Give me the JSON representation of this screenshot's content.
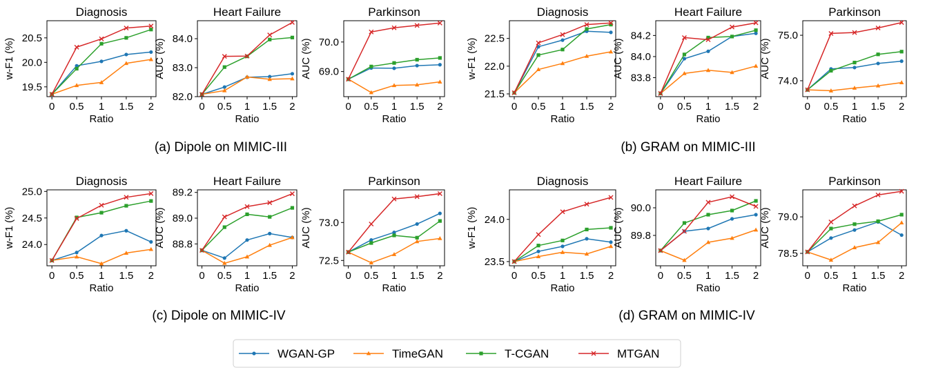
{
  "series_names": [
    "WGAN-GP",
    "TimeGAN",
    "T-CGAN",
    "MTGAN"
  ],
  "series_colors": [
    "#1f77b4",
    "#ff7f0e",
    "#2ca02c",
    "#d62728"
  ],
  "series_markers": [
    "circle",
    "triangle",
    "square",
    "x"
  ],
  "captions": [
    "(a) Dipole on MIMIC-III",
    "(b) GRAM on MIMIC-III",
    "(c) Dipole on MIMIC-IV",
    "(d) GRAM on MIMIC-IV"
  ],
  "chart_data": [
    {
      "type": "line",
      "title": "Diagnosis",
      "xlabel": "Ratio",
      "ylabel": "w-F1 (%)",
      "x": [
        0,
        0.5,
        1,
        1.5,
        2
      ],
      "xticks": [
        "0",
        "0.5",
        "1",
        "1.5",
        "2"
      ],
      "ylim": [
        19.3,
        20.85
      ],
      "yticks": [
        19.5,
        20.0,
        20.5
      ],
      "yticklabels": [
        "19.5",
        "20.0",
        "20.5"
      ],
      "series": [
        {
          "name": "WGAN-GP",
          "values": [
            19.35,
            19.93,
            20.02,
            20.16,
            20.21
          ]
        },
        {
          "name": "TimeGAN",
          "values": [
            19.35,
            19.53,
            19.59,
            19.98,
            20.06
          ]
        },
        {
          "name": "T-CGAN",
          "values": [
            19.35,
            19.87,
            20.38,
            20.5,
            20.67
          ]
        },
        {
          "name": "MTGAN",
          "values": [
            19.35,
            20.31,
            20.48,
            20.7,
            20.74
          ]
        }
      ]
    },
    {
      "type": "line",
      "title": "Heart Failure",
      "xlabel": "Ratio",
      "ylabel": "AUC (%)",
      "x": [
        0,
        0.5,
        1,
        1.5,
        2
      ],
      "xticks": [
        "0",
        "0.5",
        "1",
        "1.5",
        "2"
      ],
      "ylim": [
        82.0,
        84.62
      ],
      "yticks": [
        82.0,
        83.0,
        84.0
      ],
      "yticklabels": [
        "82.0",
        "83.0",
        "84.0"
      ],
      "series": [
        {
          "name": "WGAN-GP",
          "values": [
            82.08,
            82.33,
            82.67,
            82.69,
            82.79
          ]
        },
        {
          "name": "TimeGAN",
          "values": [
            82.08,
            82.21,
            82.68,
            82.6,
            82.62
          ]
        },
        {
          "name": "T-CGAN",
          "values": [
            82.08,
            83.02,
            83.39,
            83.97,
            84.04
          ]
        },
        {
          "name": "MTGAN",
          "values": [
            82.08,
            83.39,
            83.4,
            84.13,
            84.56
          ]
        }
      ]
    },
    {
      "type": "line",
      "title": "Parkinson",
      "xlabel": "Ratio",
      "ylabel": "AUC (%)",
      "x": [
        0,
        0.5,
        1,
        1.5,
        2
      ],
      "xticks": [
        "0",
        "0.5",
        "1",
        "1.5",
        "2"
      ],
      "ylim": [
        68.15,
        70.72
      ],
      "yticks": [
        69.0,
        70.0
      ],
      "yticklabels": [
        "69.0",
        "70.0"
      ],
      "series": [
        {
          "name": "WGAN-GP",
          "values": [
            68.74,
            69.12,
            69.11,
            69.2,
            69.23
          ]
        },
        {
          "name": "TimeGAN",
          "values": [
            68.74,
            68.29,
            68.53,
            68.55,
            68.65
          ]
        },
        {
          "name": "T-CGAN",
          "values": [
            68.74,
            69.17,
            69.29,
            69.4,
            69.46
          ]
        },
        {
          "name": "MTGAN",
          "values": [
            68.74,
            70.34,
            70.48,
            70.56,
            70.64
          ]
        }
      ]
    },
    {
      "type": "line",
      "title": "Diagnosis",
      "xlabel": "Ratio",
      "ylabel": "w-F1 (%)",
      "x": [
        0,
        0.5,
        1,
        1.5,
        2
      ],
      "xticks": [
        "0",
        "0.5",
        "1",
        "1.5",
        "2"
      ],
      "ylim": [
        21.45,
        22.82
      ],
      "yticks": [
        21.5,
        22.0,
        22.5
      ],
      "yticklabels": [
        "21.5",
        "22.0",
        "22.5"
      ],
      "series": [
        {
          "name": "WGAN-GP",
          "values": [
            21.52,
            22.35,
            22.47,
            22.63,
            22.61
          ]
        },
        {
          "name": "TimeGAN",
          "values": [
            21.52,
            21.94,
            22.05,
            22.18,
            22.26
          ]
        },
        {
          "name": "T-CGAN",
          "values": [
            21.52,
            22.2,
            22.3,
            22.67,
            22.75
          ]
        },
        {
          "name": "MTGAN",
          "values": [
            21.52,
            22.42,
            22.57,
            22.75,
            22.78
          ]
        }
      ]
    },
    {
      "type": "line",
      "title": "Heart Failure",
      "xlabel": "Ratio",
      "ylabel": "AUC (%)",
      "x": [
        0,
        0.5,
        1,
        1.5,
        2
      ],
      "xticks": [
        "0",
        "0.5",
        "1",
        "1.5",
        "2"
      ],
      "ylim": [
        83.62,
        84.34
      ],
      "yticks": [
        83.8,
        84.0,
        84.2
      ],
      "yticklabels": [
        "83.8",
        "84.0",
        "84.2"
      ],
      "series": [
        {
          "name": "WGAN-GP",
          "values": [
            83.65,
            83.98,
            84.05,
            84.19,
            84.22
          ]
        },
        {
          "name": "TimeGAN",
          "values": [
            83.65,
            83.84,
            83.87,
            83.85,
            83.91
          ]
        },
        {
          "name": "T-CGAN",
          "values": [
            83.65,
            84.02,
            84.18,
            84.19,
            84.25
          ]
        },
        {
          "name": "MTGAN",
          "values": [
            83.65,
            84.18,
            84.16,
            84.28,
            84.32
          ]
        }
      ]
    },
    {
      "type": "line",
      "title": "Parkinson",
      "xlabel": "Ratio",
      "ylabel": "AUC (%)",
      "x": [
        0,
        0.5,
        1,
        1.5,
        2
      ],
      "xticks": [
        "0",
        "0.5",
        "1",
        "1.5",
        "2"
      ],
      "ylim": [
        73.65,
        75.32
      ],
      "yticks": [
        74.0,
        75.0
      ],
      "yticklabels": [
        "74.0",
        "75.0"
      ],
      "series": [
        {
          "name": "WGAN-GP",
          "values": [
            73.8,
            74.26,
            74.29,
            74.38,
            74.43
          ]
        },
        {
          "name": "TimeGAN",
          "values": [
            73.8,
            73.78,
            73.84,
            73.89,
            73.96
          ]
        },
        {
          "name": "T-CGAN",
          "values": [
            73.8,
            74.22,
            74.4,
            74.58,
            74.64
          ]
        },
        {
          "name": "MTGAN",
          "values": [
            73.8,
            75.04,
            75.06,
            75.16,
            75.28
          ]
        }
      ]
    },
    {
      "type": "line",
      "title": "Diagnosis",
      "xlabel": "Ratio",
      "ylabel": "w-F1 (%)",
      "x": [
        0,
        0.5,
        1,
        1.5,
        2
      ],
      "xticks": [
        "0",
        "0.5",
        "1",
        "1.5",
        "2"
      ],
      "ylim": [
        23.6,
        25.03
      ],
      "yticks": [
        24.0,
        24.5,
        25.0
      ],
      "yticklabels": [
        "24.0",
        "24.5",
        "25.0"
      ],
      "series": [
        {
          "name": "WGAN-GP",
          "values": [
            23.7,
            23.85,
            24.17,
            24.26,
            24.05
          ]
        },
        {
          "name": "TimeGAN",
          "values": [
            23.7,
            23.77,
            23.64,
            23.84,
            23.91
          ]
        },
        {
          "name": "T-CGAN",
          "values": [
            23.7,
            24.51,
            24.6,
            24.73,
            24.82
          ]
        },
        {
          "name": "MTGAN",
          "values": [
            23.7,
            24.49,
            24.74,
            24.89,
            24.96
          ]
        }
      ]
    },
    {
      "type": "line",
      "title": "Heart Failure",
      "xlabel": "Ratio",
      "ylabel": "AUC (%)",
      "x": [
        0,
        0.5,
        1,
        1.5,
        2
      ],
      "xticks": [
        "0",
        "0.5",
        "1",
        "1.5",
        "2"
      ],
      "ylim": [
        88.63,
        89.22
      ],
      "yticks": [
        88.8,
        89.0,
        89.2
      ],
      "yticklabels": [
        "88.8",
        "89.0",
        "89.2"
      ],
      "series": [
        {
          "name": "WGAN-GP",
          "values": [
            88.75,
            88.69,
            88.83,
            88.88,
            88.85
          ]
        },
        {
          "name": "TimeGAN",
          "values": [
            88.75,
            88.65,
            88.7,
            88.79,
            88.85
          ]
        },
        {
          "name": "T-CGAN",
          "values": [
            88.75,
            88.93,
            89.03,
            89.01,
            89.08
          ]
        },
        {
          "name": "MTGAN",
          "values": [
            88.75,
            89.01,
            89.09,
            89.12,
            89.19
          ]
        }
      ]
    },
    {
      "type": "line",
      "title": "Parkinson",
      "xlabel": "Ratio",
      "ylabel": "AUC (%)",
      "x": [
        0,
        0.5,
        1,
        1.5,
        2
      ],
      "xticks": [
        "0",
        "0.5",
        "1",
        "1.5",
        "2"
      ],
      "ylim": [
        72.43,
        73.43
      ],
      "yticks": [
        72.5,
        73.0
      ],
      "yticklabels": [
        "72.5",
        "73.0"
      ],
      "series": [
        {
          "name": "WGAN-GP",
          "values": [
            72.61,
            72.77,
            72.87,
            72.98,
            73.12
          ]
        },
        {
          "name": "TimeGAN",
          "values": [
            72.61,
            72.47,
            72.58,
            72.75,
            72.79
          ]
        },
        {
          "name": "T-CGAN",
          "values": [
            72.61,
            72.73,
            72.83,
            72.8,
            73.02
          ]
        },
        {
          "name": "MTGAN",
          "values": [
            72.61,
            72.98,
            73.31,
            73.34,
            73.38
          ]
        }
      ]
    },
    {
      "type": "line",
      "title": "Diagnosis",
      "xlabel": "Ratio",
      "ylabel": "w-F1 (%)",
      "x": [
        0,
        0.5,
        1,
        1.5,
        2
      ],
      "xticks": [
        "0",
        "0.5",
        "1",
        "1.5",
        "2"
      ],
      "ylim": [
        23.45,
        24.35
      ],
      "yticks": [
        23.5,
        24.0
      ],
      "yticklabels": [
        "23.5",
        "24.0"
      ],
      "series": [
        {
          "name": "WGAN-GP",
          "values": [
            23.5,
            23.62,
            23.68,
            23.77,
            23.73
          ]
        },
        {
          "name": "TimeGAN",
          "values": [
            23.5,
            23.56,
            23.61,
            23.59,
            23.68
          ]
        },
        {
          "name": "T-CGAN",
          "values": [
            23.5,
            23.69,
            23.75,
            23.88,
            23.9
          ]
        },
        {
          "name": "MTGAN",
          "values": [
            23.5,
            23.82,
            24.09,
            24.18,
            24.26
          ]
        }
      ]
    },
    {
      "type": "line",
      "title": "Heart Failure",
      "xlabel": "Ratio",
      "ylabel": "AUC (%)",
      "x": [
        0,
        0.5,
        1,
        1.5,
        2
      ],
      "xticks": [
        "0",
        "0.5",
        "1",
        "1.5",
        "2"
      ],
      "ylim": [
        89.58,
        90.13
      ],
      "yticks": [
        89.8,
        90.0
      ],
      "yticklabels": [
        "89.8",
        "90.0"
      ],
      "series": [
        {
          "name": "WGAN-GP",
          "values": [
            89.69,
            89.83,
            89.85,
            89.92,
            89.95
          ]
        },
        {
          "name": "TimeGAN",
          "values": [
            89.69,
            89.62,
            89.75,
            89.78,
            89.84
          ]
        },
        {
          "name": "T-CGAN",
          "values": [
            89.69,
            89.89,
            89.95,
            89.98,
            90.05
          ]
        },
        {
          "name": "MTGAN",
          "values": [
            89.69,
            89.83,
            90.04,
            90.08,
            90.01
          ]
        }
      ]
    },
    {
      "type": "line",
      "title": "Parkinson",
      "xlabel": "Ratio",
      "ylabel": "AUC (%)",
      "x": [
        0,
        0.5,
        1,
        1.5,
        2
      ],
      "xticks": [
        "0",
        "0.5",
        "1",
        "1.5",
        "2"
      ],
      "ylim": [
        78.33,
        79.37
      ],
      "yticks": [
        78.5,
        79.0
      ],
      "yticklabels": [
        "78.5",
        "79.0"
      ],
      "series": [
        {
          "name": "WGAN-GP",
          "values": [
            78.52,
            78.71,
            78.82,
            78.93,
            78.75
          ]
        },
        {
          "name": "TimeGAN",
          "values": [
            78.52,
            78.41,
            78.58,
            78.65,
            78.92
          ]
        },
        {
          "name": "T-CGAN",
          "values": [
            78.52,
            78.84,
            78.9,
            78.94,
            79.03
          ]
        },
        {
          "name": "MTGAN",
          "values": [
            78.52,
            78.93,
            79.15,
            79.3,
            79.35
          ]
        }
      ]
    }
  ]
}
